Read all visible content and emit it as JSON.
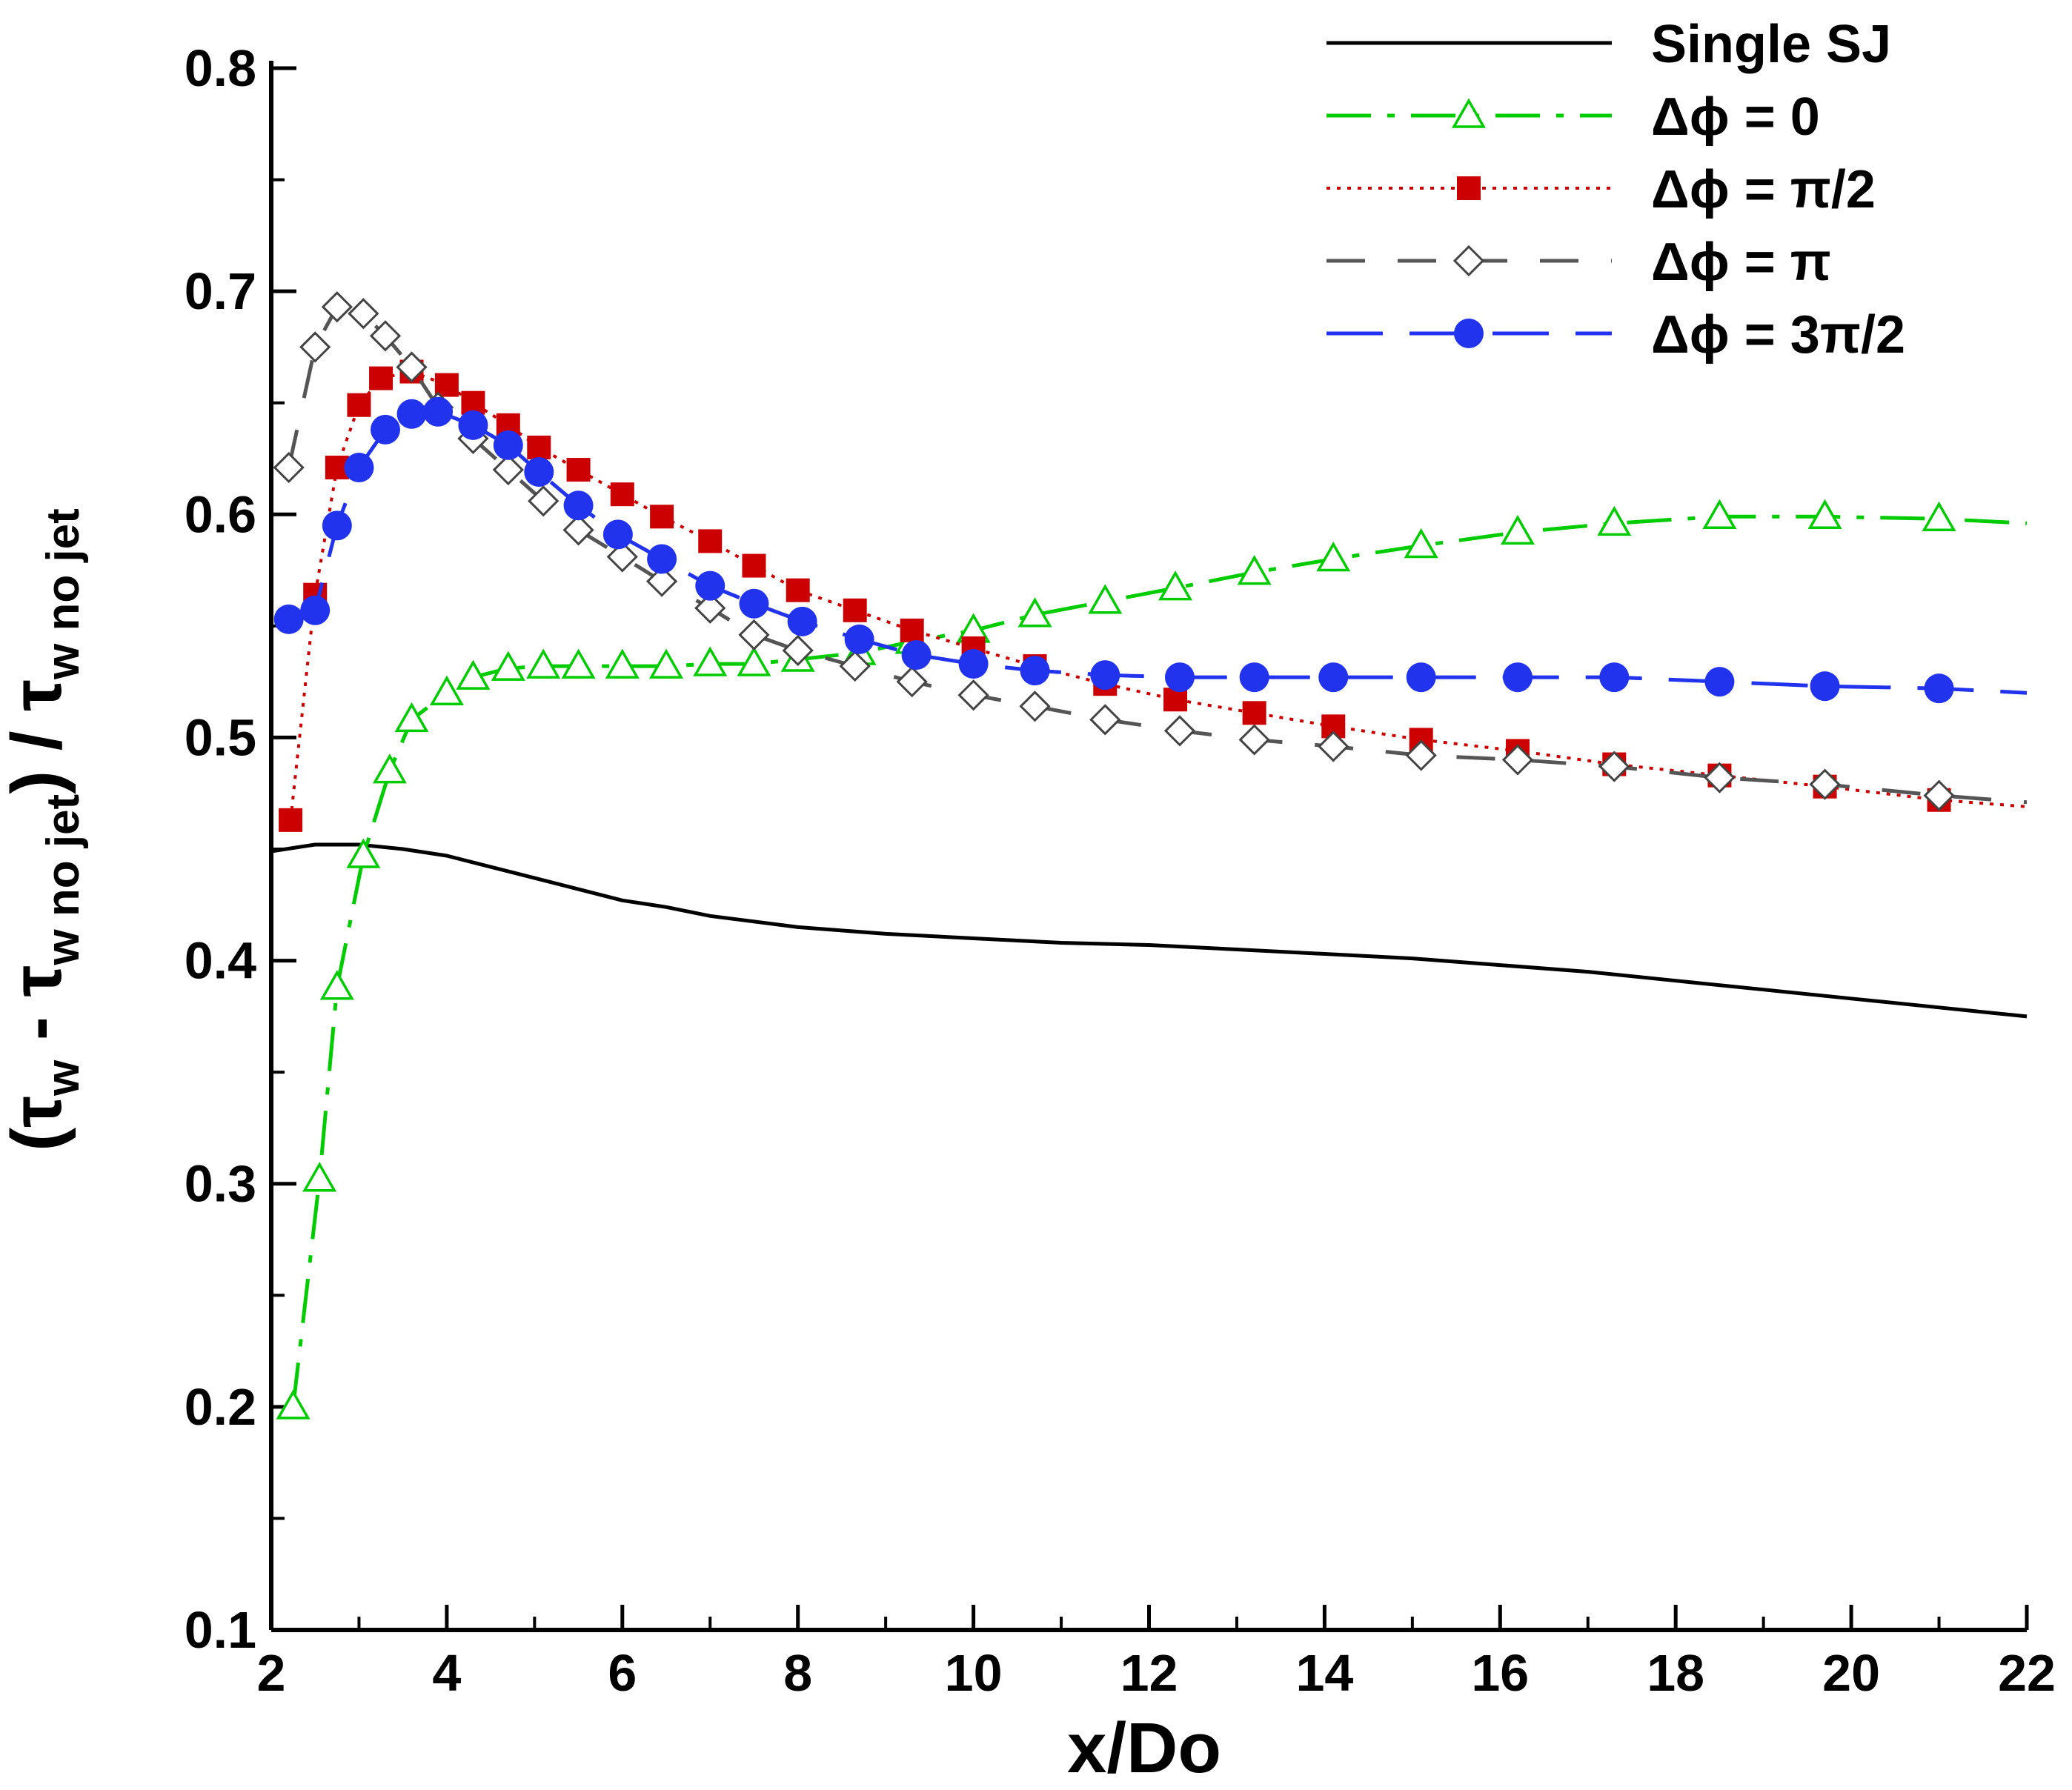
{
  "chart_data": {
    "type": "line",
    "title": "",
    "xlabel": "x/Do",
    "ylabel": {
      "open": "(",
      "tau1": "τ",
      "sub1": "w",
      "minus": " - ",
      "tau2": "τ",
      "sub2": "w no jet",
      "close": ")",
      "slash": " / ",
      "tau3": "τ",
      "sub3": "w no jet"
    },
    "xlim": [
      2,
      22
    ],
    "ylim": [
      0.1,
      0.82
    ],
    "xticks": [
      2,
      4,
      6,
      8,
      10,
      12,
      14,
      16,
      18,
      20,
      22
    ],
    "xtick_labels": [
      "2",
      "4",
      "6",
      "8",
      "10",
      "12",
      "14",
      "16",
      "18",
      "20",
      "22"
    ],
    "yticks": [
      0.1,
      0.2,
      0.3,
      0.4,
      0.5,
      0.6,
      0.7,
      0.8
    ],
    "ytick_labels": [
      "0.1",
      "0.2",
      "0.3",
      "0.4",
      "0.5",
      "0.6",
      "0.7",
      "0.8"
    ],
    "grid": false,
    "legend_position": "top-right",
    "series": [
      {
        "name": "Single SJ",
        "color": "#000000",
        "dash": "none",
        "marker": "none",
        "x": [
          2.0,
          2.5,
          3.0,
          3.5,
          4.0,
          4.5,
          5.0,
          5.5,
          6.0,
          6.5,
          7.0,
          8.0,
          9.0,
          10.0,
          11.0,
          12.0,
          13.0,
          14.0,
          15.0,
          16.0,
          17.0,
          18.0,
          19.0,
          20.0,
          21.0,
          22.0
        ],
        "y": [
          0.449,
          0.452,
          0.452,
          0.45,
          0.447,
          0.442,
          0.437,
          0.432,
          0.427,
          0.424,
          0.42,
          0.415,
          0.412,
          0.41,
          0.408,
          0.407,
          0.405,
          0.403,
          0.401,
          0.398,
          0.395,
          0.391,
          0.387,
          0.383,
          0.379,
          0.375
        ]
      },
      {
        "name": "Δϕ = 0",
        "color": "#00cc00",
        "dash": "dashdot",
        "marker": "triangle-open",
        "x": [
          2.25,
          2.55,
          2.75,
          3.05,
          3.35,
          3.6,
          4.0,
          4.3,
          4.7,
          5.1,
          5.5,
          6.0,
          6.5,
          7.0,
          7.5,
          8.0,
          8.7,
          9.3,
          10.0,
          10.7,
          11.5,
          12.3,
          13.2,
          14.1,
          15.1,
          16.2,
          17.3,
          18.5,
          19.7,
          21.0,
          22.0
        ],
        "y": [
          0.2,
          0.302,
          0.388,
          0.447,
          0.485,
          0.508,
          0.52,
          0.527,
          0.531,
          0.532,
          0.532,
          0.532,
          0.532,
          0.533,
          0.533,
          0.535,
          0.538,
          0.543,
          0.548,
          0.555,
          0.561,
          0.567,
          0.574,
          0.58,
          0.586,
          0.592,
          0.596,
          0.599,
          0.599,
          0.598,
          0.596
        ]
      },
      {
        "name": "Δϕ = π/2",
        "color": "#cc0000",
        "dash": "dotted",
        "marker": "square-filled",
        "x": [
          2.22,
          2.5,
          2.75,
          3.0,
          3.25,
          3.6,
          4.0,
          4.3,
          4.7,
          5.05,
          5.5,
          6.0,
          6.45,
          7.0,
          7.5,
          8.0,
          8.65,
          9.3,
          10.0,
          10.7,
          11.5,
          12.3,
          13.2,
          14.1,
          15.1,
          16.2,
          17.3,
          18.5,
          19.7,
          21.0,
          22.0
        ],
        "y": [
          0.463,
          0.564,
          0.621,
          0.649,
          0.661,
          0.664,
          0.658,
          0.65,
          0.64,
          0.63,
          0.62,
          0.609,
          0.599,
          0.588,
          0.577,
          0.566,
          0.557,
          0.548,
          0.54,
          0.532,
          0.524,
          0.517,
          0.511,
          0.505,
          0.499,
          0.494,
          0.488,
          0.483,
          0.478,
          0.472,
          0.469
        ]
      },
      {
        "name": "Δϕ = π",
        "color": "#555555",
        "dash": "dashed",
        "marker": "diamond-open",
        "x": [
          2.2,
          2.5,
          2.75,
          3.05,
          3.3,
          3.6,
          3.9,
          4.3,
          4.7,
          5.1,
          5.5,
          6.0,
          6.45,
          7.0,
          7.5,
          8.0,
          8.65,
          9.3,
          10.0,
          10.7,
          11.5,
          12.35,
          13.2,
          14.1,
          15.1,
          16.2,
          17.3,
          18.5,
          19.7,
          21.0,
          22.0
        ],
        "y": [
          0.621,
          0.675,
          0.693,
          0.69,
          0.68,
          0.666,
          0.648,
          0.634,
          0.62,
          0.606,
          0.593,
          0.581,
          0.57,
          0.558,
          0.546,
          0.539,
          0.532,
          0.525,
          0.519,
          0.514,
          0.508,
          0.503,
          0.499,
          0.496,
          0.492,
          0.49,
          0.487,
          0.482,
          0.479,
          0.474,
          0.471
        ]
      },
      {
        "name": "Δϕ = 3π/2",
        "color": "#2233ee",
        "dash": "longdash",
        "marker": "circle-filled",
        "x": [
          2.2,
          2.5,
          2.75,
          3.0,
          3.3,
          3.6,
          3.9,
          4.3,
          4.7,
          5.05,
          5.5,
          5.95,
          6.45,
          7.0,
          7.5,
          8.05,
          8.7,
          9.35,
          10.0,
          10.7,
          11.5,
          12.35,
          13.2,
          14.1,
          15.1,
          16.2,
          17.3,
          18.5,
          19.7,
          21.0,
          22.0
        ],
        "y": [
          0.553,
          0.557,
          0.595,
          0.621,
          0.638,
          0.645,
          0.646,
          0.64,
          0.631,
          0.619,
          0.604,
          0.591,
          0.58,
          0.568,
          0.56,
          0.552,
          0.544,
          0.537,
          0.533,
          0.53,
          0.528,
          0.527,
          0.527,
          0.527,
          0.527,
          0.527,
          0.527,
          0.525,
          0.523,
          0.522,
          0.52
        ]
      }
    ]
  }
}
